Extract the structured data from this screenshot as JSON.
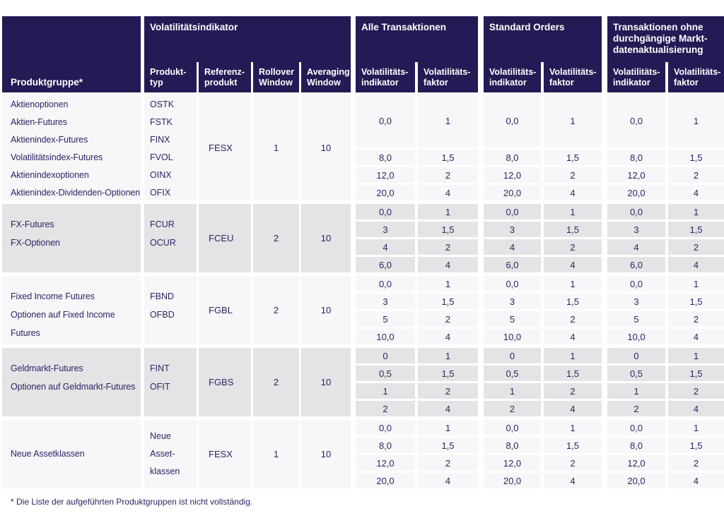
{
  "colors": {
    "header_bg": "#221b55",
    "body_text": "#2b2664",
    "row_light": "#f7f6f8",
    "row_gray": "#e4e3e5"
  },
  "header": {
    "produktgruppe": "Produktgruppe*",
    "volatilitaetsindikator": "Volatilitätsindikator",
    "alle_transaktionen": "Alle Transaktionen",
    "standard_orders": "Standard Orders",
    "transaktionen_ohne": "Transaktionen ohne durchgängige Markt-datenaktualisierung"
  },
  "subheaders": {
    "produkttyp": "Produkt-typ",
    "referenzprodukt": "Referenz-produkt",
    "rollover": "Rollover Window",
    "averaging": "Averaging Window",
    "indikator": "Volatilitäts-indikator",
    "faktor": "Volatilitäts-faktor"
  },
  "groups": [
    {
      "products": [
        "Aktienoptionen",
        "Aktien-Futures",
        "Aktienindex-Futures",
        "Volatilitätsindex-Futures",
        "Aktienindexoptionen",
        "Aktienindex-Dividenden-Optionen"
      ],
      "product_types": [
        "OSTK",
        "FSTK",
        "FINX",
        "FVOL",
        "OINX",
        "OFIX"
      ],
      "referenzprodukt": "FESX",
      "rollover_window": "1",
      "averaging_window": "10",
      "value_rows": [
        [
          "0,0",
          "1",
          "0,0",
          "1",
          "0,0",
          "1"
        ],
        [
          "8,0",
          "1,5",
          "8,0",
          "1,5",
          "8,0",
          "1,5"
        ],
        [
          "12,0",
          "2",
          "12,0",
          "2",
          "12,0",
          "2"
        ],
        [
          "20,0",
          "4",
          "20,0",
          "4",
          "20,0",
          "4"
        ]
      ]
    },
    {
      "products": [
        "FX-Futures",
        "FX-Optionen"
      ],
      "product_types": [
        "FCUR",
        "OCUR"
      ],
      "referenzprodukt": "FCEU",
      "rollover_window": "2",
      "averaging_window": "10",
      "value_rows": [
        [
          "0,0",
          "1",
          "0,0",
          "1",
          "0,0",
          "1"
        ],
        [
          "3",
          "1,5",
          "3",
          "1,5",
          "3",
          "1,5"
        ],
        [
          "4",
          "2",
          "4",
          "2",
          "4",
          "2"
        ],
        [
          "6,0",
          "4",
          "6,0",
          "4",
          "6,0",
          "4"
        ]
      ]
    },
    {
      "products": [
        "Fixed Income Futures",
        "Optionen auf Fixed Income Futures"
      ],
      "product_types": [
        "FBND",
        "OFBD"
      ],
      "referenzprodukt": "FGBL",
      "rollover_window": "2",
      "averaging_window": "10",
      "value_rows": [
        [
          "0,0",
          "1",
          "0,0",
          "1",
          "0,0",
          "1"
        ],
        [
          "3",
          "1,5",
          "3",
          "1,5",
          "3",
          "1,5"
        ],
        [
          "5",
          "2",
          "5",
          "2",
          "5",
          "2"
        ],
        [
          "10,0",
          "4",
          "10,0",
          "4",
          "10,0",
          "4"
        ]
      ]
    },
    {
      "products": [
        "Geldmarkt-Futures",
        "Optionen auf Geldmarkt-Futures"
      ],
      "product_types": [
        "FINT",
        "OFIT"
      ],
      "referenzprodukt": "FGBS",
      "rollover_window": "2",
      "averaging_window": "10",
      "value_rows": [
        [
          "0",
          "1",
          "0",
          "1",
          "0",
          "1"
        ],
        [
          "0,5",
          "1,5",
          "0,5",
          "1,5",
          "0,5",
          "1,5"
        ],
        [
          "1",
          "2",
          "1",
          "2",
          "1",
          "2"
        ],
        [
          "2",
          "4",
          "2",
          "4",
          "2",
          "4"
        ]
      ]
    },
    {
      "products": [
        "Neue Assetklassen"
      ],
      "product_types": [
        "Neue Asset-klassen"
      ],
      "referenzprodukt": "FESX",
      "rollover_window": "1",
      "averaging_window": "10",
      "value_rows": [
        [
          "0,0",
          "1",
          "0,0",
          "1",
          "0,0",
          "1"
        ],
        [
          "8,0",
          "1,5",
          "8,0",
          "1,5",
          "8,0",
          "1,5"
        ],
        [
          "12,0",
          "2",
          "12,0",
          "2",
          "12,0",
          "2"
        ],
        [
          "20,0",
          "4",
          "20,0",
          "4",
          "20,0",
          "4"
        ]
      ]
    }
  ],
  "footnote": "* Die Liste der aufgeführten Produktgruppen ist nicht vollständig."
}
